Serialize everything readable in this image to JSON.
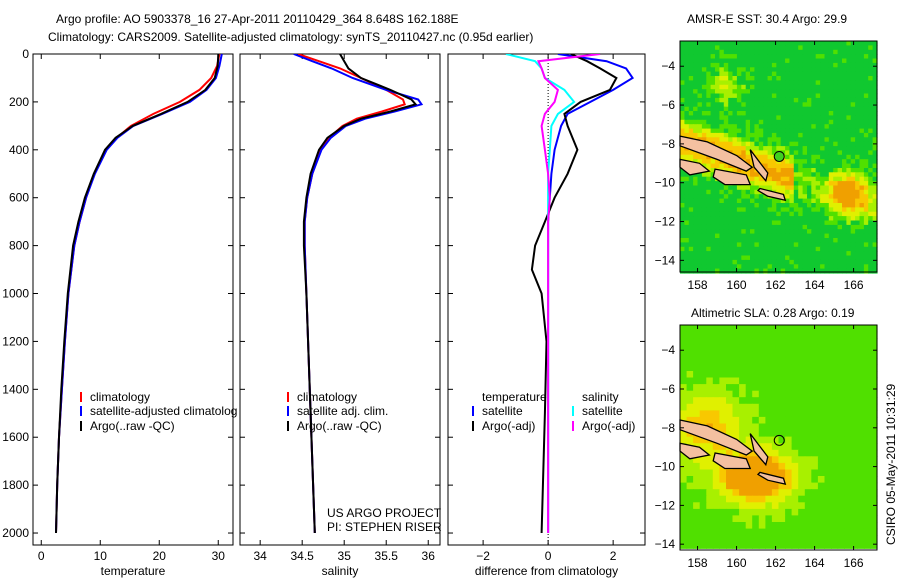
{
  "title_line1": "Argo profile: AO 5903378_16 27-Apr-2011 20110429_364 8.648S 162.188E",
  "title_line2": "Climatology: CARS2009. Satellite-adjusted climatology: synTS_20110427.nc (0.95d earlier)",
  "footer_stamp": "CSIRO 05-May-2011 10:31:29",
  "project_line1": "US ARGO PROJECT",
  "project_line2": "PI: STEPHEN RISER",
  "colors": {
    "red": "#ff0000",
    "blue": "#0000ff",
    "black": "#000000",
    "cyan": "#00ffff",
    "magenta": "#ff00ff",
    "land": "#f4c0a0"
  },
  "chart_data": [
    {
      "type": "line",
      "xlabel": "temperature",
      "ylabel": "",
      "xlim": [
        -1.4,
        32.5
      ],
      "ylim": [
        0,
        2050
      ],
      "y_reversed": true,
      "xticks": [
        0,
        10,
        20,
        30
      ],
      "yticks": [
        0,
        200,
        400,
        600,
        800,
        1000,
        1200,
        1400,
        1600,
        1800,
        2000
      ],
      "legend": [
        "climatology",
        "satellite-adjusted climatolog",
        "Argo(..raw -QC)"
      ],
      "depth": [
        0,
        50,
        100,
        150,
        200,
        250,
        300,
        350,
        400,
        500,
        600,
        700,
        800,
        1000,
        1200,
        1400,
        1600,
        1800,
        2000
      ],
      "series": [
        {
          "name": "climatology",
          "color": "red",
          "values": [
            30.2,
            29.8,
            28.8,
            26.8,
            23.5,
            19.0,
            15.2,
            12.8,
            11.0,
            9.0,
            7.6,
            6.5,
            5.6,
            4.6,
            4.0,
            3.5,
            3.0,
            2.7,
            2.5
          ]
        },
        {
          "name": "satellite-adjusted climatology",
          "color": "blue",
          "values": [
            30.6,
            30.2,
            29.6,
            28.0,
            25.2,
            20.5,
            15.6,
            12.9,
            11.1,
            9.1,
            7.6,
            6.5,
            5.6,
            4.6,
            4.0,
            3.5,
            3.0,
            2.7,
            2.5
          ]
        },
        {
          "name": "Argo",
          "color": "black",
          "values": [
            30.0,
            29.9,
            29.4,
            27.8,
            24.8,
            20.3,
            15.5,
            12.6,
            10.8,
            8.9,
            7.4,
            6.3,
            5.4,
            4.5,
            3.9,
            3.4,
            3.0,
            2.7,
            2.5
          ]
        }
      ]
    },
    {
      "type": "line",
      "xlabel": "salinity",
      "xlim": [
        33.76,
        36.14
      ],
      "ylim": [
        0,
        2050
      ],
      "y_reversed": true,
      "xticks": [
        34,
        34.5,
        35,
        35.5,
        36
      ],
      "legend": [
        "climatology",
        "satellite adj. clim.",
        "Argo(..raw -QC)"
      ],
      "depth": [
        0,
        30,
        60,
        100,
        150,
        190,
        210,
        240,
        270,
        300,
        350,
        400,
        500,
        600,
        700,
        800,
        1000,
        1500,
        2000
      ],
      "series": [
        {
          "name": "climatology",
          "color": "red",
          "values": [
            34.45,
            34.7,
            34.95,
            35.2,
            35.5,
            35.7,
            35.72,
            35.45,
            35.15,
            34.98,
            34.82,
            34.72,
            34.62,
            34.56,
            34.53,
            34.53,
            34.55,
            34.6,
            34.65
          ]
        },
        {
          "name": "satellite adj. clim.",
          "color": "blue",
          "values": [
            34.4,
            34.62,
            34.85,
            35.1,
            35.5,
            35.88,
            35.92,
            35.6,
            35.25,
            35.02,
            34.84,
            34.73,
            34.62,
            34.56,
            34.53,
            34.53,
            34.55,
            34.6,
            34.65
          ]
        },
        {
          "name": "Argo",
          "color": "black",
          "values": [
            34.95,
            35.0,
            35.05,
            35.2,
            35.55,
            35.8,
            35.85,
            35.55,
            35.2,
            35.0,
            34.8,
            34.7,
            34.6,
            34.55,
            34.52,
            34.52,
            34.55,
            34.6,
            34.65
          ]
        }
      ]
    },
    {
      "type": "line",
      "xlabel": "difference from climatology",
      "xlim": [
        -3.08,
        2.98
      ],
      "ylim": [
        0,
        2050
      ],
      "y_reversed": true,
      "xticks": [
        -2,
        0,
        2
      ],
      "legend": [
        "temperature",
        "satellite",
        "Argo(-adj)",
        "salinity",
        "satellite",
        "Argo(-adj)"
      ],
      "depth": [
        0,
        30,
        60,
        100,
        150,
        200,
        250,
        300,
        400,
        500,
        600,
        700,
        800,
        900,
        1000,
        1200,
        1500,
        2000
      ],
      "series": [
        {
          "name": "temperature satellite",
          "color": "blue",
          "values": [
            0.3,
            1.8,
            2.4,
            2.6,
            2.0,
            1.3,
            0.6,
            0.4,
            0.2,
            0.1,
            0.05,
            0.0,
            0.0,
            0.0,
            0.0,
            0.0,
            0.0,
            0.0
          ]
        },
        {
          "name": "temperature Argo(-adj)",
          "color": "black",
          "values": [
            0.7,
            1.2,
            1.6,
            2.1,
            1.9,
            1.0,
            0.5,
            0.6,
            0.9,
            0.6,
            0.2,
            -0.1,
            -0.4,
            -0.5,
            -0.2,
            -0.05,
            -0.1,
            -0.2
          ]
        },
        {
          "name": "salinity satellite",
          "color": "cyan",
          "values": [
            -1.3,
            -0.4,
            -0.2,
            -0.1,
            0.5,
            0.8,
            0.3,
            0.1,
            0.05,
            0.0,
            0.0,
            0.0,
            0.0,
            0.0,
            0.0,
            0.0,
            0.0,
            0.0
          ]
        },
        {
          "name": "salinity Argo(-adj)",
          "color": "magenta",
          "values": [
            1.6,
            -0.3,
            -0.2,
            -0.1,
            0.3,
            0.2,
            -0.1,
            -0.2,
            -0.1,
            0.0,
            0.05,
            0.0,
            0.0,
            0.0,
            0.0,
            0.0,
            0.0,
            0.0
          ]
        }
      ]
    },
    {
      "type": "heatmap",
      "title": "AMSR-E SST: 30.4 Argo: 29.9",
      "xlim": [
        157.1,
        167.2
      ],
      "ylim": [
        -14.6,
        -2.7
      ],
      "xticks": [
        158,
        160,
        162,
        164,
        166
      ],
      "yticks": [
        -4,
        -6,
        -8,
        -10,
        -12,
        -14
      ],
      "float_position": {
        "lon": 162.188,
        "lat": -8.648
      }
    },
    {
      "type": "heatmap",
      "title": "Altimetric SLA: 0.28 Argo: 0.19",
      "xlim": [
        157.1,
        167.2
      ],
      "ylim": [
        -14.3,
        -2.7
      ],
      "xticks": [
        158,
        160,
        162,
        164,
        166
      ],
      "yticks": [
        -4,
        -6,
        -8,
        -10,
        -12,
        -14
      ],
      "float_position": {
        "lon": 162.188,
        "lat": -8.648
      }
    }
  ]
}
